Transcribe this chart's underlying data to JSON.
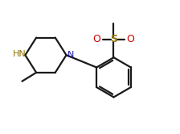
{
  "background": "#ffffff",
  "bond_color": "#1a1a1a",
  "color_N": "#1a1aaa",
  "color_HN": "#8b7000",
  "color_S": "#8b7000",
  "color_O": "#cc0000",
  "figsize": [
    2.24,
    1.66
  ],
  "dpi": 100,
  "lw": 1.6,
  "xlim": [
    0,
    11
  ],
  "ylim": [
    0,
    8.3
  ]
}
